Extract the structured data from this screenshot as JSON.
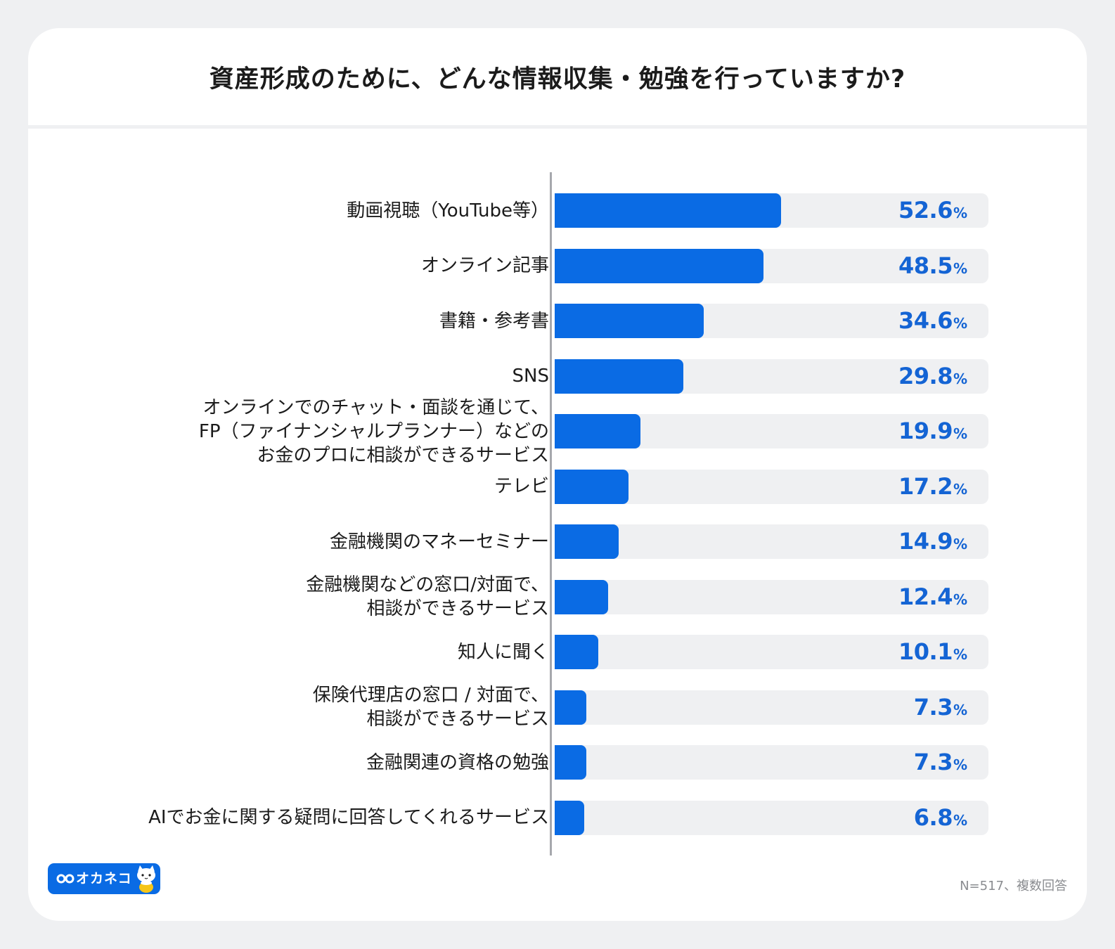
{
  "title": "資産形成のために、どんな情報収集・勉強を行っていますか?",
  "footnote": "N=517、複数回答",
  "logo": {
    "text": "オカネコ",
    "icon": "okaneko-cat-icon"
  },
  "colors": {
    "bar": "#0a6be4",
    "track": "#eff0f2",
    "value_text": "#1464d4",
    "background": "#eff0f2"
  },
  "chart_data": {
    "type": "bar",
    "orientation": "horizontal",
    "title": "資産形成のために、どんな情報収集・勉強を行っていますか?",
    "unit": "%",
    "xlim": [
      0,
      100
    ],
    "categories": [
      "動画視聴（YouTube等）",
      "オンライン記事",
      "書籍・参考書",
      "SNS",
      "オンラインでのチャット・面談を通じて、\nFP（ファイナンシャルプランナー）などの\nお金のプロに相談ができるサービス",
      "テレビ",
      "金融機関のマネーセミナー",
      "金融機関などの窓口/対面で、\n相談ができるサービス",
      "知人に聞く",
      "保険代理店の窓口 / 対面で、\n相談ができるサービス",
      "金融関連の資格の勉強",
      "AIでお金に関する疑問に回答してくれるサービス"
    ],
    "values": [
      52.6,
      48.5,
      34.6,
      29.8,
      19.9,
      17.2,
      14.9,
      12.4,
      10.1,
      7.3,
      7.3,
      6.8
    ],
    "value_labels": [
      "52.6",
      "48.5",
      "34.6",
      "29.8",
      "19.9",
      "17.2",
      "14.9",
      "12.4",
      "10.1",
      "7.3",
      "7.3",
      "6.8"
    ],
    "percent_sign": "%"
  }
}
